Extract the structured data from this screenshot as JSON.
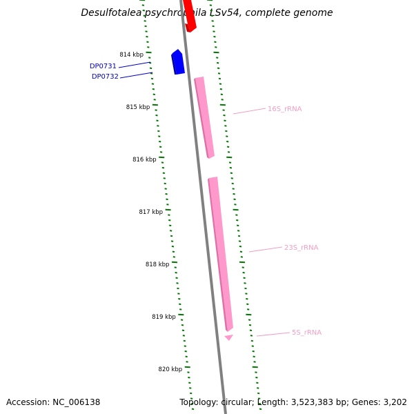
{
  "title": "Desulfotalea psychrophila LSv54, complete genome",
  "ticks": [
    {
      "label": "814 kbp",
      "kbp": 814
    },
    {
      "label": "815 kbp",
      "kbp": 815
    },
    {
      "label": "816 kbp",
      "kbp": 816
    },
    {
      "label": "817 kbp",
      "kbp": 817
    },
    {
      "label": "818 kbp",
      "kbp": 818
    },
    {
      "label": "819 kbp",
      "kbp": 819
    },
    {
      "label": "820 kbp",
      "kbp": 820
    }
  ],
  "genes": [
    {
      "label": "DP0731",
      "color": "#0000ff"
    },
    {
      "label": "DP0732",
      "color": "#0000ff"
    }
  ],
  "rnas": [
    {
      "label": "16S_rRNA",
      "color": "#ff99cc"
    },
    {
      "label": "23S_rRNA",
      "color": "#ff99cc"
    },
    {
      "label": "5S_rRNA",
      "color": "#ff99cc"
    }
  ],
  "colors": {
    "backbone": "#808080",
    "ticks": "#007700",
    "red_feature": "#ff0000",
    "gene": "#0000ff",
    "rna": "#ff99cc"
  },
  "footer": {
    "accession": "Accession: NC_006138",
    "topology": "Topology: circular; Length: 3,523,383 bp; Genes: 3,202"
  }
}
